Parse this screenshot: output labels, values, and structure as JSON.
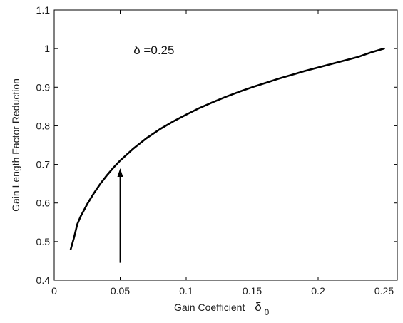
{
  "chart_data": {
    "type": "line",
    "xlabel": "Gain Coefficient",
    "xlabel_symbol": "δ",
    "xlabel_subscript": "0",
    "ylabel": "Gain Length Factor Reduction",
    "xlim": [
      0,
      0.26
    ],
    "ylim": [
      0.4,
      1.1
    ],
    "xticks": [
      0,
      0.05,
      0.1,
      0.15,
      0.2,
      0.25
    ],
    "xtick_labels": [
      "0",
      "0.05",
      "0.1",
      "0.15",
      "0.2",
      "0.25"
    ],
    "yticks": [
      0.4,
      0.5,
      0.6,
      0.7,
      0.8,
      0.9,
      1.0,
      1.1
    ],
    "ytick_labels": [
      "0.4",
      "0.5",
      "0.6",
      "0.7",
      "0.8",
      "0.9",
      "1",
      "1.1"
    ],
    "grid": false,
    "line_color": "#000000",
    "series": [
      {
        "x": [
          0.0125,
          0.015,
          0.0175,
          0.02,
          0.025,
          0.03,
          0.035,
          0.04,
          0.045,
          0.05,
          0.06,
          0.07,
          0.08,
          0.09,
          0.1,
          0.11,
          0.12,
          0.13,
          0.14,
          0.15,
          0.16,
          0.17,
          0.18,
          0.19,
          0.2,
          0.21,
          0.22,
          0.23,
          0.24,
          0.25
        ],
        "y": [
          0.48,
          0.51,
          0.545,
          0.565,
          0.597,
          0.625,
          0.65,
          0.672,
          0.692,
          0.71,
          0.741,
          0.768,
          0.791,
          0.811,
          0.829,
          0.846,
          0.861,
          0.875,
          0.888,
          0.9,
          0.911,
          0.922,
          0.932,
          0.942,
          0.951,
          0.96,
          0.969,
          0.978,
          0.99,
          1.0
        ]
      }
    ],
    "annotations": [
      {
        "text": "δ =0.25",
        "x": 0.025,
        "y": 1.0
      }
    ],
    "arrow": {
      "x": 0.05,
      "y_start": 0.445,
      "y_end": 0.69
    }
  }
}
